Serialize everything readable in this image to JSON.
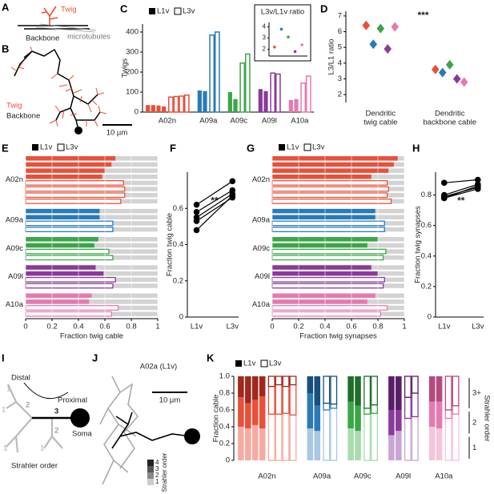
{
  "panel_labels": [
    "A",
    "B",
    "C",
    "D",
    "E",
    "F",
    "G",
    "H",
    "I",
    "J",
    "K"
  ],
  "diagrams": {
    "A": {
      "twig": "Twig",
      "backbone": "Backbone",
      "microtubules": "microtubules"
    },
    "B": {
      "twig": "Twig",
      "backbone": "Backbone",
      "scale": "10 µm"
    },
    "I": {
      "distal": "Distal",
      "proximal": "Proximal",
      "soma": "Soma",
      "title": "Strahler order",
      "orders": [
        "1",
        "1",
        "1",
        "1",
        "2",
        "2",
        "3"
      ]
    },
    "J": {
      "title": "A02a (L1v)",
      "scale": "10 µm",
      "legend_title": "Strahler order",
      "legend": [
        "4",
        "3",
        "2",
        "1"
      ]
    }
  },
  "chart_data": [
    {
      "type": "grouped_bar",
      "ylabel": "Twigs",
      "legend": [
        "L1v",
        "L3v"
      ],
      "ylim": [
        0,
        440
      ],
      "yticks": [
        0,
        100,
        200,
        300,
        400
      ],
      "groups": [
        {
          "name": "A02n",
          "color": "#e8503a",
          "L1v": [
            35,
            35,
            33,
            28
          ],
          "L3v": [
            75,
            78,
            80,
            85
          ]
        },
        {
          "name": "A09a",
          "color": "#2a7ab8",
          "L1v": [
            108,
            105
          ],
          "L3v": [
            385,
            400
          ]
        },
        {
          "name": "A09c",
          "color": "#3aa648",
          "L1v": [
            100,
            65
          ],
          "L3v": [
            245,
            290
          ]
        },
        {
          "name": "A09l",
          "color": "#8a3a9a",
          "L1v": [
            115,
            105
          ],
          "L3v": [
            195,
            190
          ]
        },
        {
          "name": "A10a",
          "color": "#e57ab0",
          "L1v": [
            60,
            65
          ],
          "L3v": [
            145,
            180
          ]
        }
      ],
      "inset": {
        "title": "L3v/L1v ratio",
        "ylim": [
          1.4,
          4.4
        ],
        "yticks": [
          2,
          3,
          4
        ],
        "values": [
          2.2,
          3.8,
          3.1,
          1.8,
          2.4
        ]
      }
    },
    {
      "type": "scatter",
      "ylabel": "L3/L1 ratio",
      "annotation": "***",
      "categories": [
        [
          "Dendritic",
          "twig cable"
        ],
        [
          "Dendritic",
          "backbone cable"
        ]
      ],
      "ylim": [
        1.5,
        7.3
      ],
      "yticks": [
        2,
        3,
        4,
        5,
        6,
        7
      ],
      "series": [
        {
          "color": "#e8503a",
          "values": [
            6.4,
            3.6
          ]
        },
        {
          "color": "#2a7ab8",
          "values": [
            5.2,
            3.4
          ]
        },
        {
          "color": "#3aa648",
          "values": [
            6.2,
            3.9
          ]
        },
        {
          "color": "#8a3a9a",
          "values": [
            4.9,
            3.0
          ]
        },
        {
          "color": "#e57ab0",
          "values": [
            6.3,
            2.8
          ]
        }
      ]
    },
    {
      "type": "hbar",
      "xlabel": "Fraction twig cable",
      "legend": [
        "L1v",
        "L3v"
      ],
      "xlim": [
        0,
        1
      ],
      "xticks": [
        0,
        0.2,
        0.4,
        0.6,
        0.8,
        1
      ],
      "groups": [
        {
          "name": "A02n",
          "color": "#e8503a",
          "L1v": [
            0.68,
            0.65,
            0.6,
            0.58
          ],
          "L3v": [
            0.74,
            0.75,
            0.75,
            0.72
          ]
        },
        {
          "name": "A09a",
          "color": "#2a7ab8",
          "L1v": [
            0.56,
            0.56
          ],
          "L3v": [
            0.66,
            0.66
          ]
        },
        {
          "name": "A09c",
          "color": "#3aa648",
          "L1v": [
            0.55,
            0.52
          ],
          "L3v": [
            0.63,
            0.66
          ]
        },
        {
          "name": "A09l",
          "color": "#8a3a9a",
          "L1v": [
            0.53,
            0.59
          ],
          "L3v": [
            0.68,
            0.66
          ]
        },
        {
          "name": "A10a",
          "color": "#e57ab0",
          "L1v": [
            0.5,
            0.48
          ],
          "L3v": [
            0.7,
            0.65
          ]
        }
      ]
    },
    {
      "type": "paired",
      "ylabel": "Fraction twig cable",
      "annotation": "**",
      "categories": [
        "L1v",
        "L3v"
      ],
      "ylim": [
        0,
        0.8
      ],
      "yticks": [
        0,
        0.2,
        0.4,
        0.6
      ],
      "pairs": [
        [
          0.62,
          0.75
        ],
        [
          0.58,
          0.7
        ],
        [
          0.55,
          0.68
        ],
        [
          0.53,
          0.66
        ],
        [
          0.48,
          0.67
        ]
      ]
    },
    {
      "type": "hbar",
      "xlabel": "Fraction twig synapses",
      "legend": [
        "L1v",
        "L3v"
      ],
      "xlim": [
        0,
        1
      ],
      "xticks": [
        0,
        0.2,
        0.4,
        0.6,
        0.8,
        1
      ],
      "groups": [
        {
          "name": "A02n",
          "color": "#e8503a",
          "L1v": [
            0.95,
            0.92,
            0.88,
            0.75
          ],
          "L3v": [
            0.87,
            0.88,
            0.87,
            0.9
          ]
        },
        {
          "name": "A09a",
          "color": "#2a7ab8",
          "L1v": [
            0.78,
            0.78
          ],
          "L3v": [
            0.85,
            0.85
          ]
        },
        {
          "name": "A09c",
          "color": "#3aa648",
          "L1v": [
            0.8,
            0.72
          ],
          "L3v": [
            0.86,
            0.84
          ]
        },
        {
          "name": "A09l",
          "color": "#8a3a9a",
          "L1v": [
            0.75,
            0.8
          ],
          "L3v": [
            0.85,
            0.84
          ]
        },
        {
          "name": "A10a",
          "color": "#e57ab0",
          "L1v": [
            0.78,
            0.72
          ],
          "L3v": [
            0.87,
            0.82
          ]
        }
      ]
    },
    {
      "type": "paired",
      "ylabel": "Fraction twig synapses",
      "annotation": "**",
      "categories": [
        "L1v",
        "L3v"
      ],
      "ylim": [
        0,
        0.95
      ],
      "yticks": [
        0,
        0.2,
        0.4,
        0.6,
        0.8
      ],
      "pairs": [
        [
          0.88,
          0.9
        ],
        [
          0.8,
          0.87
        ],
        [
          0.78,
          0.86
        ],
        [
          0.79,
          0.85
        ],
        [
          0.78,
          0.84
        ]
      ]
    },
    {
      "type": "stacked",
      "ylabel": "Fraction cable",
      "legend": [
        "L1v",
        "L3v"
      ],
      "ylim": [
        0,
        1
      ],
      "yticks": [
        0,
        0.2,
        0.4,
        0.6,
        0.8,
        {
          "value": 1,
          "label": "1.0"
        }
      ],
      "order_labels": [
        "1",
        "2",
        "3+"
      ],
      "order_title": "Strahler order",
      "groups": [
        {
          "name": "A02n",
          "colors": [
            "#f4aca2",
            "#e8503a",
            "#a0281c"
          ],
          "L1v": [
            [
              0.4,
              0.35,
              0.25
            ],
            [
              0.38,
              0.3,
              0.32
            ],
            [
              0.42,
              0.3,
              0.28
            ],
            [
              0.38,
              0.38,
              0.24
            ]
          ],
          "L3v": [
            [
              0.55,
              0.33,
              0.12
            ],
            [
              0.55,
              0.35,
              0.1
            ],
            [
              0.56,
              0.32,
              0.12
            ],
            [
              0.54,
              0.36,
              0.1
            ]
          ]
        },
        {
          "name": "A09a",
          "colors": [
            "#a8c8e4",
            "#2a7ab8",
            "#174f7d"
          ],
          "L1v": [
            [
              0.38,
              0.42,
              0.2
            ],
            [
              0.35,
              0.3,
              0.35
            ]
          ],
          "L3v": [
            [
              0.6,
              0.08,
              0.32
            ],
            [
              0.62,
              0.05,
              0.33
            ]
          ]
        },
        {
          "name": "A09c",
          "colors": [
            "#a8dcaf",
            "#3aa648",
            "#1f6e2c"
          ],
          "L1v": [
            [
              0.38,
              0.32,
              0.3
            ],
            [
              0.35,
              0.3,
              0.35
            ]
          ],
          "L3v": [
            [
              0.55,
              0.07,
              0.38
            ],
            [
              0.56,
              0.1,
              0.34
            ]
          ]
        },
        {
          "name": "A09l",
          "colors": [
            "#c9a6d2",
            "#8a3a9a",
            "#5a1e68"
          ],
          "L1v": [
            [
              0.3,
              0.3,
              0.4
            ],
            [
              0.35,
              0.25,
              0.4
            ]
          ],
          "L3v": [
            [
              0.5,
              0.25,
              0.25
            ],
            [
              0.52,
              0.28,
              0.2
            ]
          ]
        },
        {
          "name": "A10a",
          "colors": [
            "#f6c4dc",
            "#e57ab0",
            "#b8497f"
          ],
          "L1v": [
            [
              0.4,
              0.3,
              0.3
            ],
            [
              0.38,
              0.32,
              0.3
            ]
          ],
          "L3v": [
            [
              0.5,
              0.1,
              0.4
            ],
            [
              0.55,
              0.1,
              0.35
            ]
          ]
        }
      ]
    }
  ]
}
